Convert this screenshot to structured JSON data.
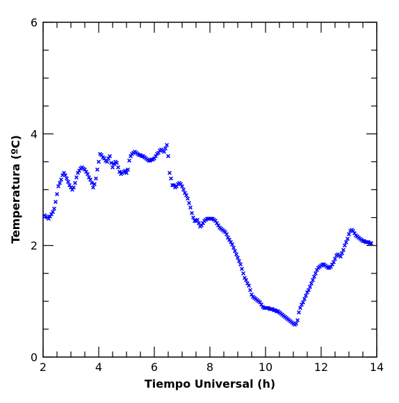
{
  "chart_data": {
    "type": "scatter",
    "title": "",
    "xlabel": "Tiempo Universal (h)",
    "ylabel": "Temperatura (ºC)",
    "xlim": [
      2,
      14
    ],
    "ylim": [
      0,
      6
    ],
    "x_ticks": [
      "2",
      "4",
      "6",
      "8",
      "10",
      "12",
      "14"
    ],
    "y_ticks": [
      "0",
      "2",
      "4",
      "6"
    ],
    "marker": "x",
    "color": "#0000ff",
    "grid": false,
    "series": [
      {
        "points": [
          [
            2.05,
            2.54
          ],
          [
            2.1,
            2.52
          ],
          [
            2.15,
            2.5
          ],
          [
            2.2,
            2.48
          ],
          [
            2.25,
            2.52
          ],
          [
            2.3,
            2.56
          ],
          [
            2.35,
            2.6
          ],
          [
            2.4,
            2.66
          ],
          [
            2.45,
            2.78
          ],
          [
            2.5,
            2.92
          ],
          [
            2.55,
            3.06
          ],
          [
            2.6,
            3.12
          ],
          [
            2.65,
            3.18
          ],
          [
            2.7,
            3.26
          ],
          [
            2.75,
            3.3
          ],
          [
            2.8,
            3.26
          ],
          [
            2.85,
            3.2
          ],
          [
            2.9,
            3.14
          ],
          [
            2.95,
            3.08
          ],
          [
            3.0,
            3.04
          ],
          [
            3.05,
            3.0
          ],
          [
            3.1,
            3.04
          ],
          [
            3.15,
            3.12
          ],
          [
            3.2,
            3.22
          ],
          [
            3.25,
            3.3
          ],
          [
            3.3,
            3.34
          ],
          [
            3.35,
            3.38
          ],
          [
            3.4,
            3.4
          ],
          [
            3.45,
            3.38
          ],
          [
            3.5,
            3.36
          ],
          [
            3.55,
            3.32
          ],
          [
            3.6,
            3.28
          ],
          [
            3.65,
            3.22
          ],
          [
            3.7,
            3.18
          ],
          [
            3.75,
            3.12
          ],
          [
            3.8,
            3.04
          ],
          [
            3.85,
            3.1
          ],
          [
            3.9,
            3.2
          ],
          [
            3.95,
            3.36
          ],
          [
            4.0,
            3.5
          ],
          [
            4.05,
            3.64
          ],
          [
            4.1,
            3.62
          ],
          [
            4.15,
            3.58
          ],
          [
            4.2,
            3.56
          ],
          [
            4.25,
            3.52
          ],
          [
            4.3,
            3.5
          ],
          [
            4.35,
            3.56
          ],
          [
            4.4,
            3.6
          ],
          [
            4.45,
            3.48
          ],
          [
            4.5,
            3.4
          ],
          [
            4.55,
            3.46
          ],
          [
            4.6,
            3.5
          ],
          [
            4.65,
            3.48
          ],
          [
            4.7,
            3.4
          ],
          [
            4.75,
            3.32
          ],
          [
            4.8,
            3.28
          ],
          [
            4.85,
            3.3
          ],
          [
            4.9,
            3.32
          ],
          [
            4.95,
            3.34
          ],
          [
            5.0,
            3.3
          ],
          [
            5.05,
            3.36
          ],
          [
            5.1,
            3.52
          ],
          [
            5.15,
            3.6
          ],
          [
            5.2,
            3.64
          ],
          [
            5.25,
            3.66
          ],
          [
            5.3,
            3.68
          ],
          [
            5.35,
            3.66
          ],
          [
            5.4,
            3.64
          ],
          [
            5.45,
            3.62
          ],
          [
            5.5,
            3.62
          ],
          [
            5.55,
            3.6
          ],
          [
            5.6,
            3.6
          ],
          [
            5.65,
            3.58
          ],
          [
            5.7,
            3.56
          ],
          [
            5.75,
            3.54
          ],
          [
            5.8,
            3.52
          ],
          [
            5.85,
            3.52
          ],
          [
            5.9,
            3.54
          ],
          [
            5.95,
            3.54
          ],
          [
            6.0,
            3.56
          ],
          [
            6.05,
            3.6
          ],
          [
            6.1,
            3.64
          ],
          [
            6.15,
            3.66
          ],
          [
            6.2,
            3.7
          ],
          [
            6.25,
            3.72
          ],
          [
            6.3,
            3.7
          ],
          [
            6.35,
            3.68
          ],
          [
            6.4,
            3.74
          ],
          [
            6.45,
            3.8
          ],
          [
            6.5,
            3.6
          ],
          [
            6.55,
            3.3
          ],
          [
            6.6,
            3.2
          ],
          [
            6.65,
            3.08
          ],
          [
            6.7,
            3.08
          ],
          [
            6.75,
            3.04
          ],
          [
            6.8,
            3.06
          ],
          [
            6.85,
            3.1
          ],
          [
            6.9,
            3.12
          ],
          [
            6.95,
            3.1
          ],
          [
            7.0,
            3.06
          ],
          [
            7.05,
            3.0
          ],
          [
            7.1,
            2.94
          ],
          [
            7.15,
            2.9
          ],
          [
            7.2,
            2.84
          ],
          [
            7.25,
            2.76
          ],
          [
            7.3,
            2.68
          ],
          [
            7.35,
            2.58
          ],
          [
            7.4,
            2.5
          ],
          [
            7.45,
            2.44
          ],
          [
            7.5,
            2.44
          ],
          [
            7.55,
            2.46
          ],
          [
            7.6,
            2.4
          ],
          [
            7.65,
            2.34
          ],
          [
            7.7,
            2.36
          ],
          [
            7.75,
            2.4
          ],
          [
            7.8,
            2.44
          ],
          [
            7.85,
            2.46
          ],
          [
            7.9,
            2.48
          ],
          [
            7.95,
            2.48
          ],
          [
            8.0,
            2.48
          ],
          [
            8.05,
            2.48
          ],
          [
            8.1,
            2.48
          ],
          [
            8.15,
            2.46
          ],
          [
            8.2,
            2.44
          ],
          [
            8.25,
            2.4
          ],
          [
            8.3,
            2.36
          ],
          [
            8.35,
            2.32
          ],
          [
            8.4,
            2.3
          ],
          [
            8.45,
            2.28
          ],
          [
            8.5,
            2.26
          ],
          [
            8.55,
            2.24
          ],
          [
            8.6,
            2.2
          ],
          [
            8.65,
            2.14
          ],
          [
            8.7,
            2.1
          ],
          [
            8.75,
            2.06
          ],
          [
            8.8,
            2.02
          ],
          [
            8.85,
            1.96
          ],
          [
            8.9,
            1.9
          ],
          [
            8.95,
            1.84
          ],
          [
            9.0,
            1.78
          ],
          [
            9.05,
            1.72
          ],
          [
            9.1,
            1.66
          ],
          [
            9.15,
            1.58
          ],
          [
            9.2,
            1.5
          ],
          [
            9.25,
            1.42
          ],
          [
            9.3,
            1.38
          ],
          [
            9.35,
            1.32
          ],
          [
            9.4,
            1.28
          ],
          [
            9.45,
            1.2
          ],
          [
            9.5,
            1.12
          ],
          [
            9.55,
            1.08
          ],
          [
            9.6,
            1.06
          ],
          [
            9.65,
            1.04
          ],
          [
            9.7,
            1.02
          ],
          [
            9.75,
            1.0
          ],
          [
            9.8,
            0.98
          ],
          [
            9.85,
            0.94
          ],
          [
            9.9,
            0.9
          ],
          [
            9.95,
            0.88
          ],
          [
            10.0,
            0.88
          ],
          [
            10.05,
            0.88
          ],
          [
            10.1,
            0.88
          ],
          [
            10.15,
            0.86
          ],
          [
            10.2,
            0.86
          ],
          [
            10.25,
            0.86
          ],
          [
            10.3,
            0.84
          ],
          [
            10.35,
            0.84
          ],
          [
            10.4,
            0.82
          ],
          [
            10.45,
            0.82
          ],
          [
            10.5,
            0.8
          ],
          [
            10.55,
            0.78
          ],
          [
            10.6,
            0.76
          ],
          [
            10.65,
            0.74
          ],
          [
            10.7,
            0.72
          ],
          [
            10.75,
            0.7
          ],
          [
            10.8,
            0.68
          ],
          [
            10.85,
            0.66
          ],
          [
            10.9,
            0.64
          ],
          [
            10.95,
            0.62
          ],
          [
            11.0,
            0.6
          ],
          [
            11.05,
            0.58
          ],
          [
            11.1,
            0.6
          ],
          [
            11.15,
            0.66
          ],
          [
            11.2,
            0.8
          ],
          [
            11.25,
            0.88
          ],
          [
            11.3,
            0.94
          ],
          [
            11.35,
            0.98
          ],
          [
            11.4,
            1.04
          ],
          [
            11.45,
            1.1
          ],
          [
            11.5,
            1.16
          ],
          [
            11.55,
            1.2
          ],
          [
            11.6,
            1.26
          ],
          [
            11.65,
            1.32
          ],
          [
            11.7,
            1.38
          ],
          [
            11.75,
            1.44
          ],
          [
            11.8,
            1.5
          ],
          [
            11.85,
            1.56
          ],
          [
            11.9,
            1.6
          ],
          [
            11.95,
            1.62
          ],
          [
            12.0,
            1.64
          ],
          [
            12.05,
            1.66
          ],
          [
            12.1,
            1.66
          ],
          [
            12.15,
            1.64
          ],
          [
            12.2,
            1.62
          ],
          [
            12.25,
            1.6
          ],
          [
            12.3,
            1.6
          ],
          [
            12.35,
            1.62
          ],
          [
            12.4,
            1.66
          ],
          [
            12.45,
            1.7
          ],
          [
            12.5,
            1.76
          ],
          [
            12.55,
            1.82
          ],
          [
            12.6,
            1.84
          ],
          [
            12.65,
            1.82
          ],
          [
            12.7,
            1.8
          ],
          [
            12.75,
            1.86
          ],
          [
            12.8,
            1.92
          ],
          [
            12.85,
            2.0
          ],
          [
            12.9,
            2.06
          ],
          [
            12.95,
            2.12
          ],
          [
            13.0,
            2.2
          ],
          [
            13.05,
            2.26
          ],
          [
            13.1,
            2.28
          ],
          [
            13.15,
            2.26
          ],
          [
            13.2,
            2.22
          ],
          [
            13.25,
            2.18
          ],
          [
            13.3,
            2.16
          ],
          [
            13.35,
            2.14
          ],
          [
            13.4,
            2.12
          ],
          [
            13.45,
            2.1
          ],
          [
            13.5,
            2.08
          ],
          [
            13.55,
            2.08
          ],
          [
            13.6,
            2.06
          ],
          [
            13.65,
            2.06
          ],
          [
            13.7,
            2.06
          ],
          [
            13.75,
            2.04
          ],
          [
            13.8,
            2.04
          ]
        ]
      }
    ]
  }
}
